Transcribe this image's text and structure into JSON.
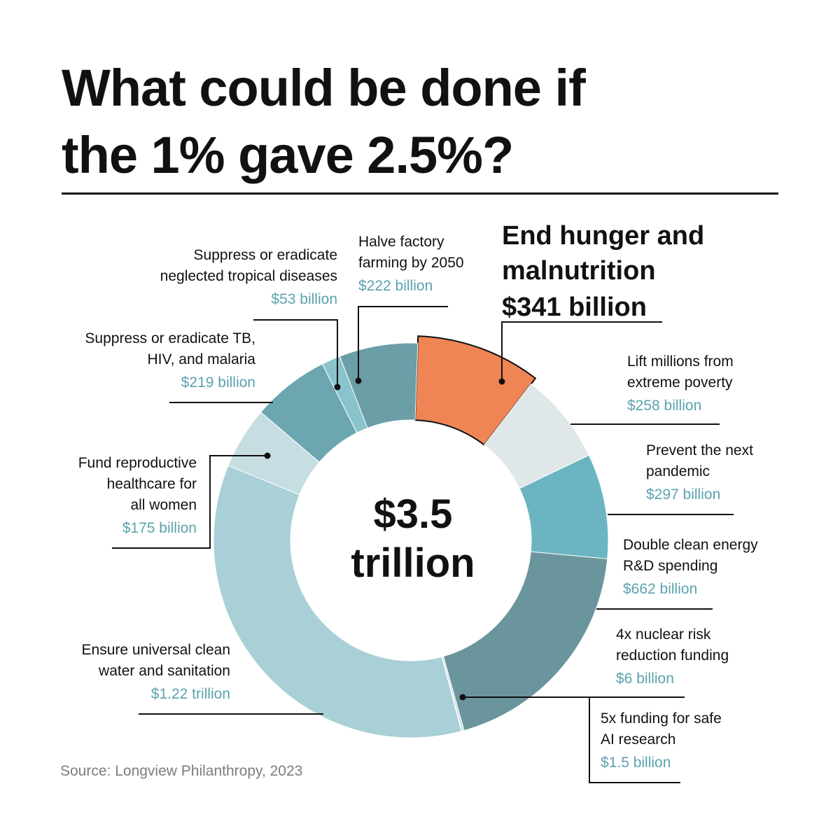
{
  "title": {
    "line1": "What could be done if",
    "line2": "the 1% gave 2.5%?"
  },
  "center_total": {
    "line1": "$3.5",
    "line2": "trillion"
  },
  "source": "Source: Longview Philanthropy, 2023",
  "colors": {
    "highlight": "#ef8555",
    "value_text": "#5ba2ae",
    "poverty": "#dfe7e8",
    "pandemic": "#6bb5c3",
    "clean_energy": "#6b959c",
    "nuclear": "#c4dbe0",
    "ai": "#6b959c",
    "water": "#a8d0d6",
    "reproductive": "#c6dde1",
    "tb_hiv": "#6ca6b1",
    "tropical": "#89c4cd",
    "factory": "#6b9ea7"
  },
  "chart_data": {
    "type": "pie",
    "donut": true,
    "total_label": "$3.5 trillion",
    "unit": "billion USD",
    "slices": [
      {
        "key": "hunger",
        "label": "End hunger and malnutrition",
        "value_label": "$341 billion",
        "value": 341,
        "highlight": true
      },
      {
        "key": "poverty",
        "label": "Lift millions from extreme poverty",
        "value_label": "$258 billion",
        "value": 258
      },
      {
        "key": "pandemic",
        "label": "Prevent the next pandemic",
        "value_label": "$297 billion",
        "value": 297
      },
      {
        "key": "clean_energy",
        "label": "Double clean energy R&D spending",
        "value_label": "$662 billion",
        "value": 662
      },
      {
        "key": "nuclear",
        "label": "4x nuclear risk reduction funding",
        "value_label": "$6 billion",
        "value": 6
      },
      {
        "key": "ai",
        "label": "5x funding for safe AI research",
        "value_label": "$1.5 billion",
        "value": 1.5
      },
      {
        "key": "water",
        "label": "Ensure universal clean water and sanitation",
        "value_label": "$1.22 trillion",
        "value": 1220
      },
      {
        "key": "reproductive",
        "label": "Fund reproductive healthcare for all women",
        "value_label": "$175 billion",
        "value": 175
      },
      {
        "key": "tb_hiv",
        "label": "Suppress or eradicate TB, HIV, and malaria",
        "value_label": "$219 billion",
        "value": 219
      },
      {
        "key": "tropical",
        "label": "Suppress or eradicate neglected tropical diseases",
        "value_label": "$53 billion",
        "value": 53
      },
      {
        "key": "factory",
        "label": "Halve factory farming by 2050",
        "value_label": "$222 billion",
        "value": 222
      }
    ]
  },
  "labels": {
    "hunger": {
      "line1": "End hunger and",
      "line2": "malnutrition",
      "value": "$341 billion"
    },
    "poverty": {
      "line1": "Lift millions from",
      "line2": "extreme poverty",
      "value": "$258 billion"
    },
    "pandemic": {
      "line1": "Prevent the next",
      "line2": "pandemic",
      "value": "$297 billion"
    },
    "clean_energy": {
      "line1": "Double clean energy",
      "line2": "R&D spending",
      "value": "$662 billion"
    },
    "nuclear": {
      "line1": "4x nuclear risk",
      "line2": "reduction funding",
      "value": "$6 billion"
    },
    "ai": {
      "line1": "5x funding for safe",
      "line2": "AI research",
      "value": "$1.5 billion"
    },
    "water": {
      "line1": "Ensure universal clean",
      "line2": "water and sanitation",
      "value": "$1.22 trillion"
    },
    "reproductive": {
      "line1": "Fund reproductive",
      "line2": "healthcare for",
      "line3": "all women",
      "value": "$175 billion"
    },
    "tb_hiv": {
      "line1": "Suppress or eradicate TB,",
      "line2": "HIV, and malaria",
      "value": "$219 billion"
    },
    "tropical": {
      "line1": "Suppress or eradicate",
      "line2": "neglected tropical diseases",
      "value": "$53 billion"
    },
    "factory": {
      "line1": "Halve factory",
      "line2": "farming by 2050",
      "value": "$222 billion"
    }
  }
}
